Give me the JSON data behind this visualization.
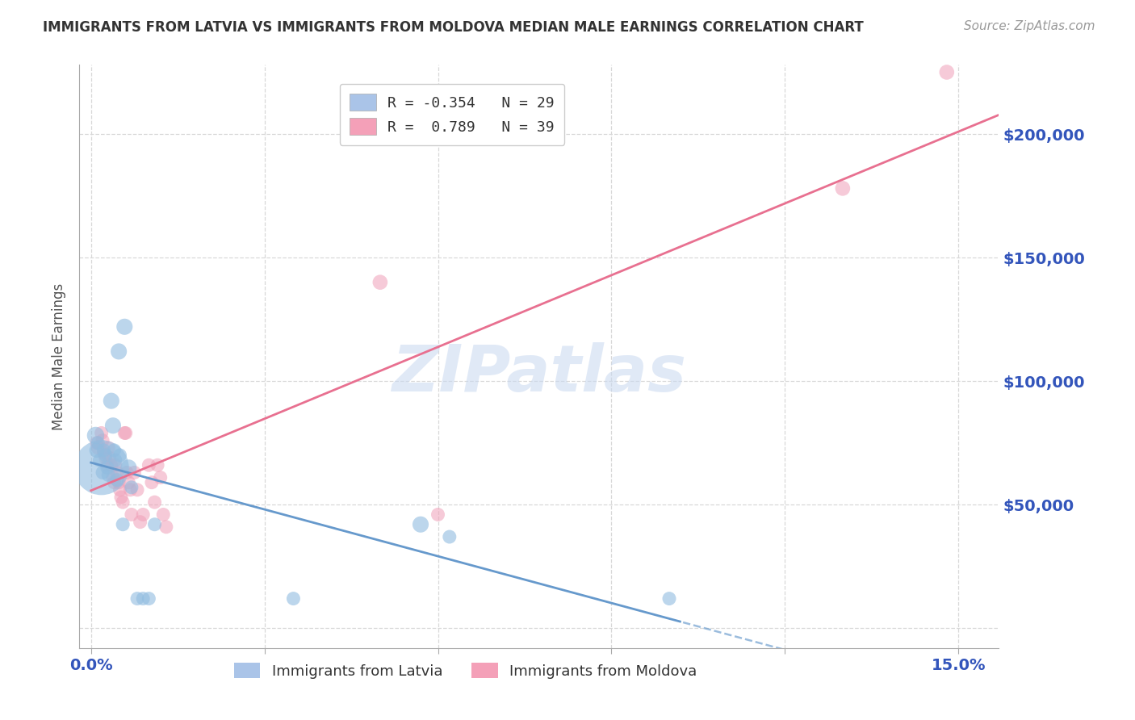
{
  "title": "IMMIGRANTS FROM LATVIA VS IMMIGRANTS FROM MOLDOVA MEDIAN MALE EARNINGS CORRELATION CHART",
  "source": "Source: ZipAtlas.com",
  "ylabel": "Median Male Earnings",
  "x_ticks": [
    0.0,
    0.03,
    0.06,
    0.09,
    0.12,
    0.15
  ],
  "y_ticks": [
    0,
    50000,
    100000,
    150000,
    200000
  ],
  "xlim": [
    -0.002,
    0.157
  ],
  "ylim": [
    -8000,
    228000
  ],
  "watermark": "ZIPatlas",
  "latvia_color": "#90bce0",
  "moldova_color": "#f0a0b8",
  "latvia_line_color": "#6699cc",
  "moldova_line_color": "#e87090",
  "latvia_points": [
    [
      0.0008,
      78000,
      80
    ],
    [
      0.001,
      72000,
      60
    ],
    [
      0.0012,
      75000,
      50
    ],
    [
      0.0015,
      68000,
      50
    ],
    [
      0.0018,
      65000,
      800
    ],
    [
      0.002,
      63000,
      50
    ],
    [
      0.0022,
      72000,
      50
    ],
    [
      0.0025,
      70000,
      50
    ],
    [
      0.0028,
      65000,
      50
    ],
    [
      0.003,
      62000,
      50
    ],
    [
      0.0035,
      92000,
      70
    ],
    [
      0.0038,
      82000,
      70
    ],
    [
      0.004,
      72000,
      50
    ],
    [
      0.0042,
      68000,
      50
    ],
    [
      0.0045,
      60000,
      50
    ],
    [
      0.0048,
      112000,
      70
    ],
    [
      0.005,
      70000,
      50
    ],
    [
      0.0055,
      42000,
      50
    ],
    [
      0.0058,
      122000,
      70
    ],
    [
      0.0065,
      65000,
      70
    ],
    [
      0.007,
      57000,
      50
    ],
    [
      0.008,
      12000,
      50
    ],
    [
      0.009,
      12000,
      50
    ],
    [
      0.01,
      12000,
      50
    ],
    [
      0.011,
      42000,
      50
    ],
    [
      0.035,
      12000,
      50
    ],
    [
      0.057,
      42000,
      70
    ],
    [
      0.062,
      37000,
      50
    ],
    [
      0.1,
      12000,
      50
    ]
  ],
  "moldova_points": [
    [
      0.001,
      75000,
      50
    ],
    [
      0.0012,
      73000,
      50
    ],
    [
      0.0018,
      79000,
      50
    ],
    [
      0.002,
      76000,
      50
    ],
    [
      0.0022,
      71000,
      50
    ],
    [
      0.0025,
      69000,
      50
    ],
    [
      0.0028,
      66000,
      50
    ],
    [
      0.003,
      73000,
      50
    ],
    [
      0.0032,
      69000,
      50
    ],
    [
      0.0035,
      66000,
      50
    ],
    [
      0.0038,
      61000,
      50
    ],
    [
      0.004,
      59000,
      50
    ],
    [
      0.0042,
      66000,
      50
    ],
    [
      0.0045,
      63000,
      50
    ],
    [
      0.0048,
      59000,
      50
    ],
    [
      0.005,
      56000,
      50
    ],
    [
      0.0052,
      53000,
      50
    ],
    [
      0.0055,
      51000,
      50
    ],
    [
      0.0058,
      79000,
      50
    ],
    [
      0.006,
      79000,
      50
    ],
    [
      0.0062,
      63000,
      50
    ],
    [
      0.0065,
      59000,
      50
    ],
    [
      0.0068,
      56000,
      50
    ],
    [
      0.007,
      46000,
      50
    ],
    [
      0.0075,
      63000,
      50
    ],
    [
      0.008,
      56000,
      50
    ],
    [
      0.0085,
      43000,
      50
    ],
    [
      0.009,
      46000,
      50
    ],
    [
      0.01,
      66000,
      50
    ],
    [
      0.0105,
      59000,
      50
    ],
    [
      0.011,
      51000,
      50
    ],
    [
      0.0115,
      66000,
      50
    ],
    [
      0.012,
      61000,
      50
    ],
    [
      0.0125,
      46000,
      50
    ],
    [
      0.013,
      41000,
      50
    ],
    [
      0.05,
      140000,
      60
    ],
    [
      0.06,
      46000,
      50
    ],
    [
      0.13,
      178000,
      60
    ],
    [
      0.148,
      225000,
      60
    ]
  ],
  "grid_color": "#d8d8d8",
  "bg_color": "#ffffff",
  "title_color": "#333333",
  "axis_label_color": "#555555",
  "tick_color": "#3355bb",
  "tick_fontsize": 14,
  "title_fontsize": 12,
  "ylabel_fontsize": 12,
  "source_fontsize": 11,
  "latvia_line_solid_end": 0.102,
  "moldova_line_solid_end": 0.15
}
